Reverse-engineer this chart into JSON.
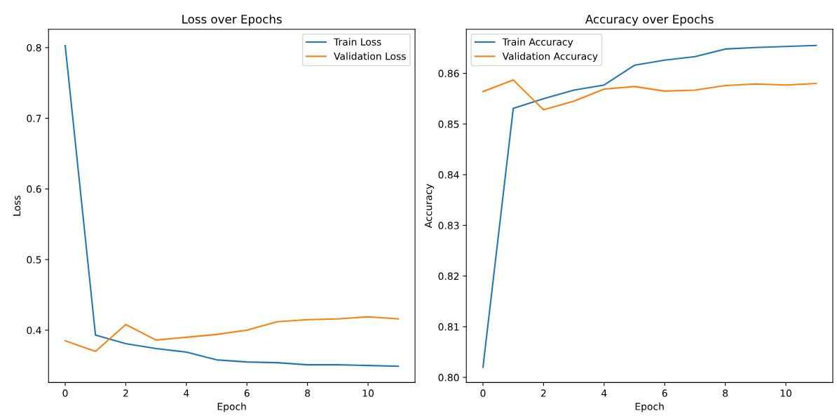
{
  "chart_data": [
    {
      "type": "line",
      "title": "Loss over Epochs",
      "xlabel": "Epoch",
      "ylabel": "Loss",
      "x": [
        0,
        1,
        2,
        3,
        4,
        5,
        6,
        7,
        8,
        9,
        10,
        11
      ],
      "series": [
        {
          "name": "Train Loss",
          "color": "#1f77b4",
          "values": [
            0.803,
            0.393,
            0.381,
            0.374,
            0.369,
            0.358,
            0.355,
            0.354,
            0.351,
            0.351,
            0.35,
            0.349
          ]
        },
        {
          "name": "Validation Loss",
          "color": "#ff7f0e",
          "values": [
            0.385,
            0.37,
            0.408,
            0.386,
            0.39,
            0.394,
            0.4,
            0.412,
            0.415,
            0.416,
            0.419,
            0.416
          ]
        }
      ],
      "xlim": [
        -0.55,
        11.55
      ],
      "xticks": [
        0,
        2,
        4,
        6,
        8,
        10
      ],
      "ylim": [
        0.326,
        0.826
      ],
      "yticks": [
        0.4,
        0.5,
        0.6,
        0.7,
        0.8
      ],
      "grid": false,
      "legend": "top right"
    },
    {
      "type": "line",
      "title": "Accuracy over Epochs",
      "xlabel": "Epoch",
      "ylabel": "Accuracy",
      "x": [
        0,
        1,
        2,
        3,
        4,
        5,
        6,
        7,
        8,
        9,
        10,
        11
      ],
      "series": [
        {
          "name": "Train Accuracy",
          "color": "#1f77b4",
          "values": [
            0.802,
            0.8531,
            0.855,
            0.8567,
            0.8577,
            0.8616,
            0.8626,
            0.8633,
            0.8648,
            0.8651,
            0.8653,
            0.8655
          ]
        },
        {
          "name": "Validation Accuracy",
          "color": "#ff7f0e",
          "values": [
            0.8564,
            0.8587,
            0.8528,
            0.8545,
            0.8569,
            0.8574,
            0.8565,
            0.8567,
            0.8576,
            0.8579,
            0.8577,
            0.858
          ]
        }
      ],
      "xlim": [
        -0.55,
        11.55
      ],
      "xticks": [
        0,
        2,
        4,
        6,
        8,
        10
      ],
      "ylim": [
        0.799,
        0.8687
      ],
      "yticks": [
        {
          "value": 0.8,
          "label": "0.80"
        },
        0.81,
        0.82,
        0.83,
        0.84,
        0.85,
        0.86
      ],
      "grid": false,
      "legend": "top left"
    }
  ]
}
